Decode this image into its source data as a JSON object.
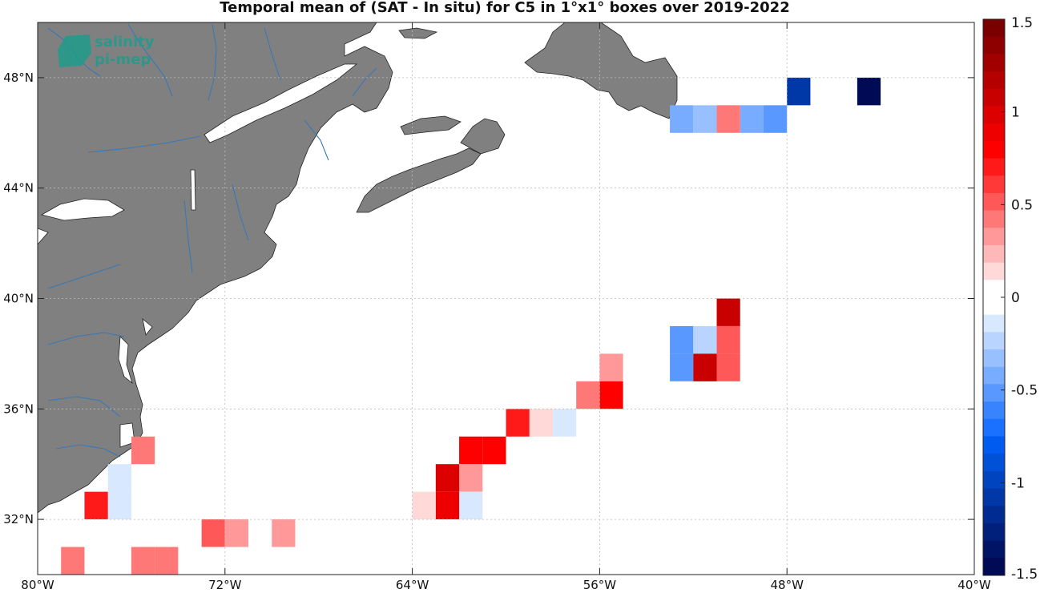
{
  "title": "Temporal mean of (SAT - In situ) for C5 in 1°x1° boxes over 2019-2022",
  "logo": {
    "line1": "salinity",
    "line2": "pi-mep"
  },
  "map": {
    "lon_range": [
      -80,
      -40
    ],
    "lat_range": [
      30,
      50
    ],
    "land_color": "#808080",
    "river_color": "#3a78b5",
    "grid_style": "dotted"
  },
  "axes": {
    "x_ticks": [
      {
        "lon": -80,
        "label": "80°W"
      },
      {
        "lon": -72,
        "label": "72°W"
      },
      {
        "lon": -64,
        "label": "64°W"
      },
      {
        "lon": -56,
        "label": "56°W"
      },
      {
        "lon": -48,
        "label": "48°W"
      },
      {
        "lon": -40,
        "label": "40°W"
      }
    ],
    "y_ticks": [
      {
        "lat": 32,
        "label": "32°N"
      },
      {
        "lat": 36,
        "label": "36°N"
      },
      {
        "lat": 40,
        "label": "40°N"
      },
      {
        "lat": 44,
        "label": "44°N"
      },
      {
        "lat": 48,
        "label": "48°N"
      }
    ]
  },
  "colorbar": {
    "range": [
      -1.5,
      1.5
    ],
    "ticks": [
      {
        "value": 1.5,
        "label": "1.5"
      },
      {
        "value": 1,
        "label": "1"
      },
      {
        "value": 0.5,
        "label": "0.5"
      },
      {
        "value": 0,
        "label": "0"
      },
      {
        "value": -0.5,
        "label": "-0.5"
      },
      {
        "value": -1,
        "label": "-1"
      },
      {
        "value": -1.5,
        "label": "-1.5"
      }
    ],
    "colors_top_to_bottom": [
      "#7a0000",
      "#8e0000",
      "#a20000",
      "#b50000",
      "#c80000",
      "#dc0000",
      "#ee0000",
      "#ff0000",
      "#ff1a1a",
      "#ff3838",
      "#ff5858",
      "#ff7878",
      "#ff9898",
      "#ffb8b8",
      "#ffd8d8",
      "#ffffff",
      "#ffffff",
      "#d8e8ff",
      "#b8d4ff",
      "#98c0ff",
      "#78acff",
      "#5898ff",
      "#3884ff",
      "#1a70ff",
      "#005cf0",
      "#0050d8",
      "#0044c0",
      "#0038a8",
      "#002c92",
      "#00207c",
      "#001466",
      "#000a55"
    ]
  },
  "chart_data": {
    "type": "heatmap",
    "title": "Temporal mean of (SAT - In situ) for C5 in 1°x1° boxes over 2019-2022",
    "xlabel": "",
    "ylabel": "",
    "x_unit": "longitude (°E, negative = W)",
    "y_unit": "latitude (°N)",
    "value_range": [
      -1.5,
      1.5
    ],
    "boxes": [
      {
        "lon": -45,
        "lat": 47,
        "value": -1.5
      },
      {
        "lon": -48,
        "lat": 47,
        "value": -1.1
      },
      {
        "lon": -49,
        "lat": 46,
        "value": -0.55
      },
      {
        "lon": -50,
        "lat": 46,
        "value": -0.4
      },
      {
        "lon": -51,
        "lat": 46,
        "value": 0.4
      },
      {
        "lon": -52,
        "lat": 46,
        "value": -0.35
      },
      {
        "lon": -53,
        "lat": 46,
        "value": -0.45
      },
      {
        "lon": -51,
        "lat": 39,
        "value": 1.05
      },
      {
        "lon": -53,
        "lat": 38,
        "value": -0.5
      },
      {
        "lon": -53,
        "lat": 37,
        "value": -0.5
      },
      {
        "lon": -52,
        "lat": 38,
        "value": -0.25
      },
      {
        "lon": -52,
        "lat": 37,
        "value": 1.05
      },
      {
        "lon": -51,
        "lat": 38,
        "value": 0.55
      },
      {
        "lon": -51,
        "lat": 37,
        "value": 0.55
      },
      {
        "lon": -56,
        "lat": 37,
        "value": 0.3
      },
      {
        "lon": -56,
        "lat": 36,
        "value": 0.8
      },
      {
        "lon": -57,
        "lat": 36,
        "value": 0.45
      },
      {
        "lon": -58,
        "lat": 35,
        "value": -0.15
      },
      {
        "lon": -59,
        "lat": 35,
        "value": 0.15
      },
      {
        "lon": -60,
        "lat": 35,
        "value": 0.7
      },
      {
        "lon": -61,
        "lat": 34,
        "value": 0.8
      },
      {
        "lon": -62,
        "lat": 34,
        "value": 0.8
      },
      {
        "lon": -62,
        "lat": 33,
        "value": 0.3
      },
      {
        "lon": -63,
        "lat": 33,
        "value": 0.95
      },
      {
        "lon": -62,
        "lat": 32,
        "value": -0.15
      },
      {
        "lon": -63,
        "lat": 32,
        "value": 0.85
      },
      {
        "lon": -64,
        "lat": 32,
        "value": 0.15
      },
      {
        "lon": -76,
        "lat": 34,
        "value": 0.45
      },
      {
        "lon": -77,
        "lat": 33,
        "value": -0.15
      },
      {
        "lon": -77,
        "lat": 32,
        "value": -0.15
      },
      {
        "lon": -78,
        "lat": 32,
        "value": 0.7
      },
      {
        "lon": -73,
        "lat": 31,
        "value": 0.55
      },
      {
        "lon": -72,
        "lat": 31,
        "value": 0.3
      },
      {
        "lon": -70,
        "lat": 31,
        "value": 0.3
      },
      {
        "lon": -79,
        "lat": 30,
        "value": 0.45
      },
      {
        "lon": -76,
        "lat": 30,
        "value": 0.45
      },
      {
        "lon": -75,
        "lat": 30,
        "value": 0.45
      }
    ]
  }
}
